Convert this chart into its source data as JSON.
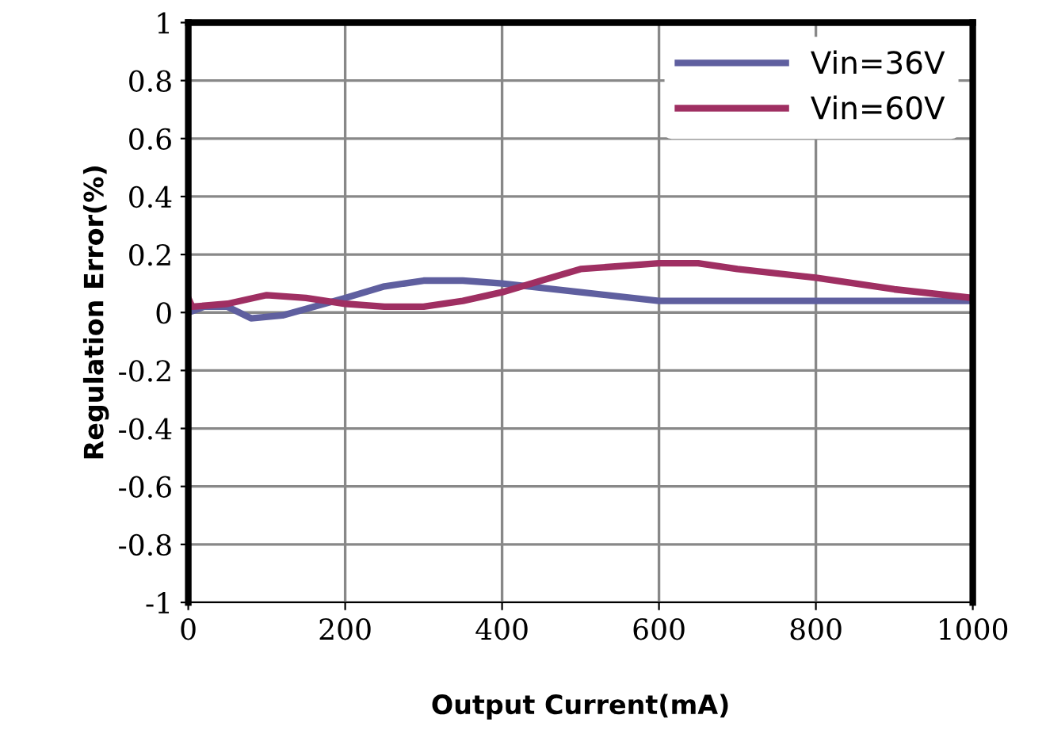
{
  "chart_data": {
    "type": "line",
    "xlabel": "Output Current(mA)",
    "ylabel": "Regulation Error(%)",
    "xlim": [
      0,
      1000
    ],
    "ylim": [
      -1,
      1
    ],
    "xticks": [
      0,
      200,
      400,
      600,
      800,
      1000
    ],
    "yticks": [
      -1,
      -0.8,
      -0.6,
      -0.4,
      -0.2,
      0,
      0.2,
      0.4,
      0.6,
      0.8,
      1
    ],
    "grid": true,
    "legend": "top right",
    "marker": "none",
    "line_style": "solid",
    "series": [
      {
        "name": "Vin=36V",
        "color": "#5f5f9f",
        "x": [
          0,
          20,
          50,
          80,
          120,
          200,
          250,
          300,
          350,
          400,
          500,
          600,
          1000
        ],
        "values": [
          0,
          0.02,
          0.02,
          -0.02,
          -0.01,
          0.05,
          0.09,
          0.11,
          0.11,
          0.1,
          0.07,
          0.04,
          0.04
        ]
      },
      {
        "name": "Vin=60V",
        "color": "#9f2f62",
        "x": [
          0,
          5,
          50,
          100,
          150,
          200,
          250,
          300,
          350,
          400,
          450,
          500,
          600,
          650,
          700,
          800,
          900,
          1000
        ],
        "values": [
          0.05,
          0.02,
          0.03,
          0.06,
          0.05,
          0.03,
          0.02,
          0.02,
          0.04,
          0.07,
          0.11,
          0.15,
          0.17,
          0.17,
          0.15,
          0.12,
          0.08,
          0.05
        ]
      }
    ]
  }
}
